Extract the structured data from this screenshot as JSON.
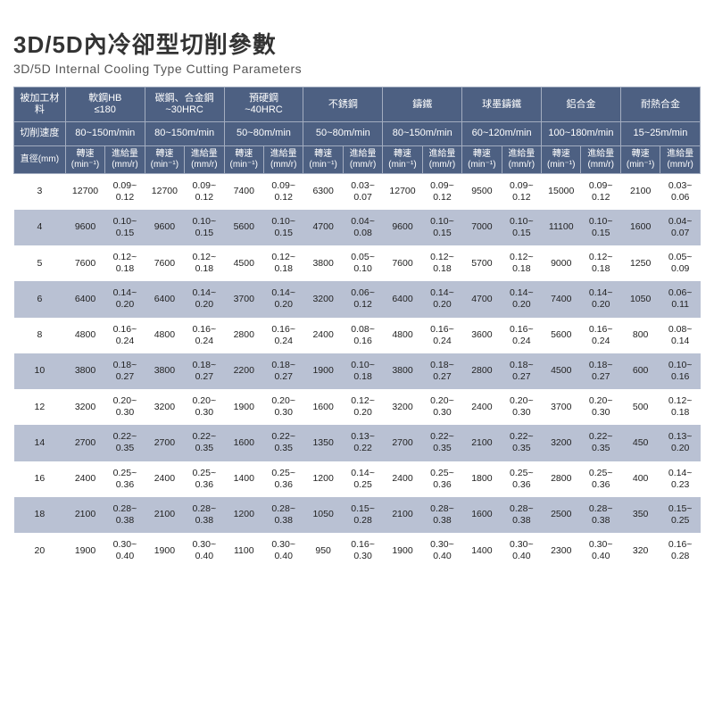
{
  "title_cn": "3D/5D內冷卻型切削參數",
  "title_en": "3D/5D Internal Cooling Type Cutting Parameters",
  "header_material_label": "被加工材料",
  "header_speed_label": "切削速度",
  "header_diameter_label": "直徑(mm)",
  "sub_rpm": "轉速\n(min⁻¹)",
  "sub_feed": "進給量\n(mm/r)",
  "materials": [
    {
      "name": "軟鋼HB\n≤180",
      "speed": "80~150m/min"
    },
    {
      "name": "碳鋼、合金鋼\n~30HRC",
      "speed": "80~150m/min"
    },
    {
      "name": "預硬鋼\n~40HRC",
      "speed": "50~80m/min"
    },
    {
      "name": "不銹鋼",
      "speed": "50~80m/min"
    },
    {
      "name": "鑄鐵",
      "speed": "80~150m/min"
    },
    {
      "name": "球墨鑄鐵",
      "speed": "60~120m/min"
    },
    {
      "name": "鋁合金",
      "speed": "100~180m/min"
    },
    {
      "name": "耐熱合金",
      "speed": "15~25m/min"
    }
  ],
  "rows": [
    {
      "dia": "3",
      "cells": [
        [
          "12700",
          "0.09~\n0.12"
        ],
        [
          "12700",
          "0.09~\n0.12"
        ],
        [
          "7400",
          "0.09~\n0.12"
        ],
        [
          "6300",
          "0.03~\n0.07"
        ],
        [
          "12700",
          "0.09~\n0.12"
        ],
        [
          "9500",
          "0.09~\n0.12"
        ],
        [
          "15000",
          "0.09~\n0.12"
        ],
        [
          "2100",
          "0.03~\n0.06"
        ]
      ]
    },
    {
      "dia": "4",
      "cells": [
        [
          "9600",
          "0.10~\n0.15"
        ],
        [
          "9600",
          "0.10~\n0.15"
        ],
        [
          "5600",
          "0.10~\n0.15"
        ],
        [
          "4700",
          "0.04~\n0.08"
        ],
        [
          "9600",
          "0.10~\n0.15"
        ],
        [
          "7000",
          "0.10~\n0.15"
        ],
        [
          "11100",
          "0.10~\n0.15"
        ],
        [
          "1600",
          "0.04~\n0.07"
        ]
      ]
    },
    {
      "dia": "5",
      "cells": [
        [
          "7600",
          "0.12~\n0.18"
        ],
        [
          "7600",
          "0.12~\n0.18"
        ],
        [
          "4500",
          "0.12~\n0.18"
        ],
        [
          "3800",
          "0.05~\n0.10"
        ],
        [
          "7600",
          "0.12~\n0.18"
        ],
        [
          "5700",
          "0.12~\n0.18"
        ],
        [
          "9000",
          "0.12~\n0.18"
        ],
        [
          "1250",
          "0.05~\n0.09"
        ]
      ]
    },
    {
      "dia": "6",
      "cells": [
        [
          "6400",
          "0.14~\n0.20"
        ],
        [
          "6400",
          "0.14~\n0.20"
        ],
        [
          "3700",
          "0.14~\n0.20"
        ],
        [
          "3200",
          "0.06~\n0.12"
        ],
        [
          "6400",
          "0.14~\n0.20"
        ],
        [
          "4700",
          "0.14~\n0.20"
        ],
        [
          "7400",
          "0.14~\n0.20"
        ],
        [
          "1050",
          "0.06~\n0.11"
        ]
      ]
    },
    {
      "dia": "8",
      "cells": [
        [
          "4800",
          "0.16~\n0.24"
        ],
        [
          "4800",
          "0.16~\n0.24"
        ],
        [
          "2800",
          "0.16~\n0.24"
        ],
        [
          "2400",
          "0.08~\n0.16"
        ],
        [
          "4800",
          "0.16~\n0.24"
        ],
        [
          "3600",
          "0.16~\n0.24"
        ],
        [
          "5600",
          "0.16~\n0.24"
        ],
        [
          "800",
          "0.08~\n0.14"
        ]
      ]
    },
    {
      "dia": "10",
      "cells": [
        [
          "3800",
          "0.18~\n0.27"
        ],
        [
          "3800",
          "0.18~\n0.27"
        ],
        [
          "2200",
          "0.18~\n0.27"
        ],
        [
          "1900",
          "0.10~\n0.18"
        ],
        [
          "3800",
          "0.18~\n0.27"
        ],
        [
          "2800",
          "0.18~\n0.27"
        ],
        [
          "4500",
          "0.18~\n0.27"
        ],
        [
          "600",
          "0.10~\n0.16"
        ]
      ]
    },
    {
      "dia": "12",
      "cells": [
        [
          "3200",
          "0.20~\n0.30"
        ],
        [
          "3200",
          "0.20~\n0.30"
        ],
        [
          "1900",
          "0.20~\n0.30"
        ],
        [
          "1600",
          "0.12~\n0.20"
        ],
        [
          "3200",
          "0.20~\n0.30"
        ],
        [
          "2400",
          "0.20~\n0.30"
        ],
        [
          "3700",
          "0.20~\n0.30"
        ],
        [
          "500",
          "0.12~\n0.18"
        ]
      ]
    },
    {
      "dia": "14",
      "cells": [
        [
          "2700",
          "0.22~\n0.35"
        ],
        [
          "2700",
          "0.22~\n0.35"
        ],
        [
          "1600",
          "0.22~\n0.35"
        ],
        [
          "1350",
          "0.13~\n0.22"
        ],
        [
          "2700",
          "0.22~\n0.35"
        ],
        [
          "2100",
          "0.22~\n0.35"
        ],
        [
          "3200",
          "0.22~\n0.35"
        ],
        [
          "450",
          "0.13~\n0.20"
        ]
      ]
    },
    {
      "dia": "16",
      "cells": [
        [
          "2400",
          "0.25~\n0.36"
        ],
        [
          "2400",
          "0.25~\n0.36"
        ],
        [
          "1400",
          "0.25~\n0.36"
        ],
        [
          "1200",
          "0.14~\n0.25"
        ],
        [
          "2400",
          "0.25~\n0.36"
        ],
        [
          "1800",
          "0.25~\n0.36"
        ],
        [
          "2800",
          "0.25~\n0.36"
        ],
        [
          "400",
          "0.14~\n0.23"
        ]
      ]
    },
    {
      "dia": "18",
      "cells": [
        [
          "2100",
          "0.28~\n0.38"
        ],
        [
          "2100",
          "0.28~\n0.38"
        ],
        [
          "1200",
          "0.28~\n0.38"
        ],
        [
          "1050",
          "0.15~\n0.28"
        ],
        [
          "2100",
          "0.28~\n0.38"
        ],
        [
          "1600",
          "0.28~\n0.38"
        ],
        [
          "2500",
          "0.28~\n0.38"
        ],
        [
          "350",
          "0.15~\n0.25"
        ]
      ]
    },
    {
      "dia": "20",
      "cells": [
        [
          "1900",
          "0.30~\n0.40"
        ],
        [
          "1900",
          "0.30~\n0.40"
        ],
        [
          "1100",
          "0.30~\n0.40"
        ],
        [
          "950",
          "0.16~\n0.30"
        ],
        [
          "1900",
          "0.30~\n0.40"
        ],
        [
          "1400",
          "0.30~\n0.40"
        ],
        [
          "2300",
          "0.30~\n0.40"
        ],
        [
          "320",
          "0.16~\n0.28"
        ]
      ]
    }
  ],
  "colors": {
    "header_bg": "#4d6082",
    "header_border": "#a3adc0",
    "row_even_bg": "#b9c1d3",
    "row_odd_bg": "#ffffff"
  }
}
